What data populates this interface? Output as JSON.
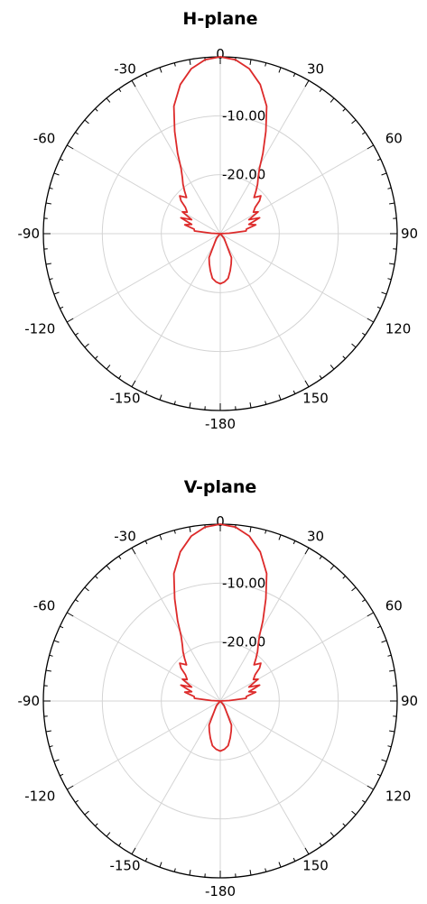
{
  "colors": {
    "pattern": "#dd2a2a",
    "grid": "#d4d4d4",
    "frame": "#000000"
  },
  "chart_data": [
    {
      "type": "polar-line",
      "title": "H-plane",
      "r_unit": "dB",
      "r_range": [
        -30,
        0
      ],
      "r_ticks": [
        -10,
        -20
      ],
      "r_tick_labels": [
        "-10.00",
        "-20.00"
      ],
      "angle_ticks": [
        0,
        30,
        60,
        90,
        120,
        150,
        180,
        -150,
        -120,
        -90,
        -60,
        -30
      ],
      "angle_tick_labels": [
        "0",
        "30",
        "60",
        "90",
        "120",
        "150",
        "-180",
        "-150",
        "-120",
        "-90",
        "-60",
        "-30"
      ],
      "grid": true,
      "series": [
        {
          "angle_deg": [
            0,
            5,
            10,
            15,
            20,
            24,
            28,
            31,
            34,
            37,
            40,
            43,
            47,
            50,
            53,
            57,
            60,
            64,
            68,
            72,
            76,
            80,
            84,
            87,
            90,
            95,
            110,
            125,
            140,
            155,
            160,
            165,
            170,
            175,
            180,
            -175,
            -170,
            -165,
            -160,
            -155,
            -140,
            -125,
            -110,
            -95,
            -90,
            -87,
            -84,
            -80,
            -76,
            -72,
            -68,
            -64,
            -60,
            -57,
            -53,
            -50,
            -47,
            -43,
            -40,
            -37,
            -34,
            -31,
            -28,
            -24,
            -20,
            -15,
            -10,
            -5
          ],
          "r_db": [
            0,
            -0.4,
            -1.6,
            -3.8,
            -7,
            -11,
            -14.6,
            -17.1,
            -18.5,
            -19.5,
            -20.6,
            -21.6,
            -20.6,
            -21.3,
            -22.6,
            -23.3,
            -22.6,
            -24.6,
            -22.8,
            -24.9,
            -23.8,
            -25.5,
            -25.6,
            -28.5,
            -30,
            -30,
            -30,
            -30,
            -29,
            -25.5,
            -24.6,
            -23.5,
            -22.3,
            -21.8,
            -21.5,
            -21.8,
            -22.3,
            -23.5,
            -24.6,
            -25.5,
            -29,
            -30,
            -30,
            -30,
            -30,
            -28.5,
            -25.6,
            -25.5,
            -23.8,
            -24.9,
            -22.8,
            -24.6,
            -22.6,
            -23.3,
            -22.6,
            -21.3,
            -20.6,
            -21.6,
            -20.6,
            -19.5,
            -18.5,
            -17.1,
            -14.6,
            -11,
            -7,
            -3.8,
            -1.6,
            -0.4
          ]
        }
      ]
    },
    {
      "type": "polar-line",
      "title": "V-plane",
      "r_unit": "dB",
      "r_range": [
        -30,
        0
      ],
      "r_ticks": [
        -10,
        -20
      ],
      "r_tick_labels": [
        "-10.00",
        "-20.00"
      ],
      "angle_ticks": [
        0,
        30,
        60,
        90,
        120,
        150,
        180,
        -150,
        -120,
        -90,
        -60,
        -30
      ],
      "angle_tick_labels": [
        "0",
        "30",
        "60",
        "90",
        "120",
        "150",
        "-180",
        "-150",
        "-120",
        "-90",
        "-60",
        "-30"
      ],
      "grid": true,
      "series": [
        {
          "angle_deg": [
            0,
            5,
            10,
            15,
            20,
            24,
            28,
            31,
            34,
            37,
            40,
            43,
            47,
            50,
            53,
            57,
            60,
            64,
            68,
            72,
            76,
            80,
            84,
            87,
            90,
            95,
            110,
            125,
            140,
            155,
            160,
            165,
            170,
            175,
            180,
            -175,
            -170,
            -165,
            -160,
            -155,
            -140,
            -125,
            -110,
            -95,
            -90,
            -87,
            -84,
            -80,
            -76,
            -72,
            -68,
            -64,
            -60,
            -57,
            -53,
            -50,
            -47,
            -43,
            -40,
            -37,
            -34,
            -31,
            -28,
            -24,
            -20,
            -15,
            -10,
            -5
          ],
          "r_db": [
            0,
            -0.4,
            -1.6,
            -3.8,
            -7,
            -11,
            -14.6,
            -17.1,
            -18.5,
            -19.5,
            -20.6,
            -21.6,
            -20.6,
            -21.3,
            -22.6,
            -23.3,
            -22.6,
            -24.6,
            -22.8,
            -24.9,
            -23.8,
            -25.5,
            -25.6,
            -28.5,
            -30,
            -30,
            -30,
            -30,
            -29,
            -25.5,
            -24.6,
            -23.5,
            -22.3,
            -21.8,
            -21.5,
            -21.8,
            -22.3,
            -23.5,
            -24.6,
            -25.5,
            -29,
            -30,
            -30,
            -30,
            -30,
            -28.5,
            -25.6,
            -25.5,
            -23.8,
            -24.9,
            -22.8,
            -24.6,
            -22.6,
            -23.3,
            -22.6,
            -21.3,
            -20.6,
            -21.6,
            -20.6,
            -19.5,
            -18.5,
            -17.1,
            -14.6,
            -11,
            -7,
            -3.8,
            -1.6,
            -0.4
          ]
        }
      ]
    }
  ]
}
